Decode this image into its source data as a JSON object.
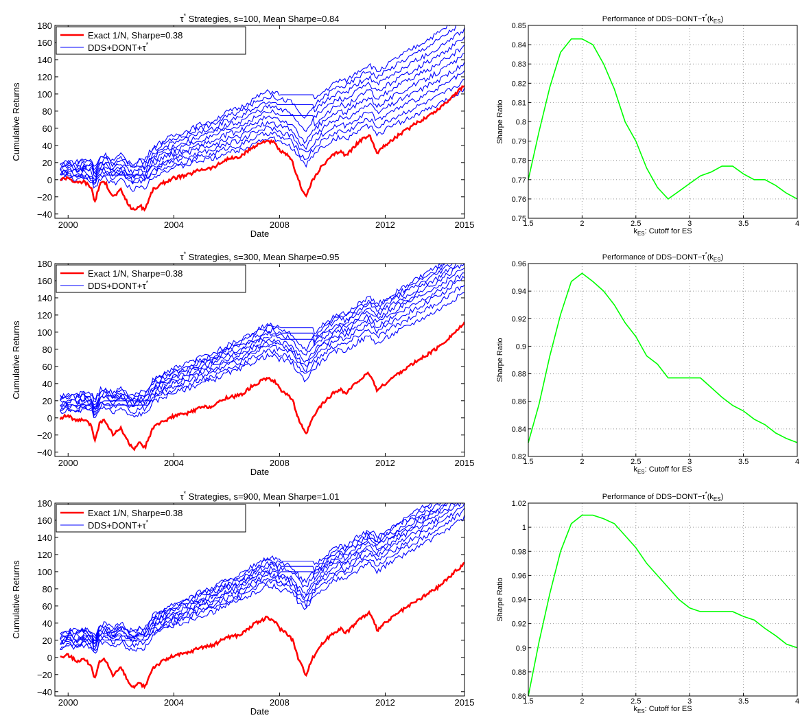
{
  "chart_data": [
    {
      "type": "line",
      "panel": "left-top",
      "title": "τ* Strategies, s=100, Mean Sharpe=0.84",
      "title_main": "τ",
      "title_sup": "*",
      "title_rest": " Strategies, s=100, Mean Sharpe=0.84",
      "xlabel": "Date",
      "ylabel": "Cumulative Returns",
      "xlim": [
        1999.5,
        2015
      ],
      "ylim": [
        -45,
        180
      ],
      "xticks": [
        "2000",
        "2004",
        "2008",
        "2012",
        "2015"
      ],
      "xtick_values": [
        2000,
        2004,
        2008,
        2012,
        2015
      ],
      "yticks": [
        "180",
        "160",
        "140",
        "120",
        "100",
        "80",
        "60",
        "40",
        "20",
        "0",
        "−20",
        "−40"
      ],
      "ytick_values": [
        180,
        160,
        140,
        120,
        100,
        80,
        60,
        40,
        20,
        0,
        -20,
        -40
      ],
      "grid": false,
      "legend_position": "top-left",
      "legend": {
        "exact": "Exact 1/N, Sharpe=0.38",
        "dds_main": "DDS+DONT+τ",
        "dds_sup": "*"
      },
      "colors": {
        "exact": "#ff0000",
        "dds": "#0000ff"
      },
      "exact_series": [
        [
          1999.7,
          0
        ],
        [
          2000.0,
          3
        ],
        [
          2000.3,
          -4
        ],
        [
          2000.6,
          -2
        ],
        [
          2000.9,
          -10
        ],
        [
          2001.0,
          -27
        ],
        [
          2001.2,
          -5
        ],
        [
          2001.4,
          -3
        ],
        [
          2001.7,
          -20
        ],
        [
          2002.0,
          -12
        ],
        [
          2002.3,
          -30
        ],
        [
          2002.5,
          -36
        ],
        [
          2002.7,
          -30
        ],
        [
          2002.9,
          -35
        ],
        [
          2003.2,
          -12
        ],
        [
          2003.6,
          -4
        ],
        [
          2004.0,
          2
        ],
        [
          2004.5,
          5
        ],
        [
          2005.0,
          12
        ],
        [
          2005.5,
          14
        ],
        [
          2006.0,
          24
        ],
        [
          2006.5,
          26
        ],
        [
          2007.0,
          38
        ],
        [
          2007.5,
          46
        ],
        [
          2007.8,
          43
        ],
        [
          2008.0,
          34
        ],
        [
          2008.3,
          28
        ],
        [
          2008.5,
          20
        ],
        [
          2008.7,
          0
        ],
        [
          2008.9,
          -14
        ],
        [
          2009.0,
          -20
        ],
        [
          2009.2,
          -4
        ],
        [
          2009.5,
          12
        ],
        [
          2010.0,
          28
        ],
        [
          2010.3,
          34
        ],
        [
          2010.5,
          28
        ],
        [
          2011.0,
          44
        ],
        [
          2011.4,
          52
        ],
        [
          2011.7,
          32
        ],
        [
          2012.0,
          40
        ],
        [
          2012.5,
          52
        ],
        [
          2013.0,
          62
        ],
        [
          2013.5,
          72
        ],
        [
          2014.0,
          82
        ],
        [
          2014.5,
          96
        ],
        [
          2015.0,
          110
        ]
      ],
      "dds_offsets": [
        [
          0,
          0
        ],
        [
          2,
          8
        ],
        [
          4,
          16
        ],
        [
          6,
          24
        ],
        [
          8,
          32
        ],
        [
          10,
          40
        ],
        [
          12,
          48
        ],
        [
          14,
          56
        ],
        [
          16,
          64
        ],
        [
          18,
          70
        ]
      ],
      "dds_flat": [
        [
          1,
          2001.3,
          2003.0
        ],
        [
          3,
          2003.0,
          2003.0
        ],
        [
          5,
          2008.0,
          2009.3
        ],
        [
          7,
          2008.0,
          2009.3
        ],
        [
          9,
          2008.0,
          2009.3
        ]
      ]
    },
    {
      "type": "line",
      "panel": "right-top",
      "title": "Performance of DDS−DONT−τ*(kES)",
      "title_main": "Performance of DDS−DONT−τ",
      "title_sup": "*",
      "title_paren_open": "(k",
      "title_sub": "ES",
      "title_paren_close": ")",
      "xlabel": "kES: Cutoff for ES",
      "xlabel_k": "k",
      "xlabel_sub": "ES",
      "xlabel_rest": ": Cutoff for ES",
      "ylabel": "Sharpe Ratio",
      "xlim": [
        1.5,
        4
      ],
      "ylim": [
        0.75,
        0.85
      ],
      "xticks": [
        "1.5",
        "2",
        "2.5",
        "3",
        "3.5",
        "4"
      ],
      "xtick_values": [
        1.5,
        2,
        2.5,
        3,
        3.5,
        4
      ],
      "yticks": [
        "0.85",
        "0.84",
        "0.83",
        "0.82",
        "0.81",
        "0.8",
        "0.79",
        "0.78",
        "0.77",
        "0.76",
        "0.75"
      ],
      "ytick_values": [
        0.85,
        0.84,
        0.83,
        0.82,
        0.81,
        0.8,
        0.79,
        0.78,
        0.77,
        0.76,
        0.75
      ],
      "grid": true,
      "color": "#00ff00",
      "x": [
        1.5,
        1.6,
        1.7,
        1.8,
        1.9,
        2.0,
        2.1,
        2.2,
        2.3,
        2.4,
        2.5,
        2.6,
        2.7,
        2.8,
        2.9,
        3.0,
        3.1,
        3.2,
        3.3,
        3.4,
        3.5,
        3.6,
        3.7,
        3.8,
        3.9,
        4.0
      ],
      "y": [
        0.77,
        0.795,
        0.818,
        0.836,
        0.843,
        0.843,
        0.84,
        0.83,
        0.817,
        0.8,
        0.79,
        0.776,
        0.766,
        0.76,
        0.764,
        0.768,
        0.772,
        0.774,
        0.777,
        0.777,
        0.773,
        0.77,
        0.77,
        0.767,
        0.763,
        0.76
      ]
    },
    {
      "type": "line",
      "panel": "left-middle",
      "title": "τ* Strategies, s=300, Mean Sharpe=0.95",
      "title_main": "τ",
      "title_sup": "*",
      "title_rest": " Strategies, s=300, Mean Sharpe=0.95",
      "xlabel": "Date",
      "ylabel": "Cumulative Returns",
      "xlim": [
        1999.5,
        2015
      ],
      "ylim": [
        -45,
        180
      ],
      "xticks": [
        "2000",
        "2004",
        "2008",
        "2012",
        "2015"
      ],
      "xtick_values": [
        2000,
        2004,
        2008,
        2012,
        2015
      ],
      "yticks": [
        "180",
        "160",
        "140",
        "120",
        "100",
        "80",
        "60",
        "40",
        "20",
        "0",
        "−20",
        "−40"
      ],
      "ytick_values": [
        180,
        160,
        140,
        120,
        100,
        80,
        60,
        40,
        20,
        0,
        -20,
        -40
      ],
      "grid": false,
      "legend_position": "top-left",
      "legend": {
        "exact": "Exact 1/N, Sharpe=0.38",
        "dds_main": "DDS+DONT+τ",
        "dds_sup": "*"
      },
      "colors": {
        "exact": "#ff0000",
        "dds": "#0000ff"
      },
      "exact_series": [
        [
          1999.7,
          0
        ],
        [
          2000.0,
          3
        ],
        [
          2000.3,
          -4
        ],
        [
          2000.6,
          -2
        ],
        [
          2000.9,
          -10
        ],
        [
          2001.0,
          -27
        ],
        [
          2001.2,
          -5
        ],
        [
          2001.4,
          -3
        ],
        [
          2001.7,
          -20
        ],
        [
          2002.0,
          -12
        ],
        [
          2002.3,
          -30
        ],
        [
          2002.5,
          -36
        ],
        [
          2002.7,
          -30
        ],
        [
          2002.9,
          -35
        ],
        [
          2003.2,
          -12
        ],
        [
          2003.6,
          -4
        ],
        [
          2004.0,
          2
        ],
        [
          2004.5,
          5
        ],
        [
          2005.0,
          12
        ],
        [
          2005.5,
          14
        ],
        [
          2006.0,
          24
        ],
        [
          2006.5,
          26
        ],
        [
          2007.0,
          38
        ],
        [
          2007.5,
          46
        ],
        [
          2007.8,
          43
        ],
        [
          2008.0,
          34
        ],
        [
          2008.3,
          28
        ],
        [
          2008.5,
          20
        ],
        [
          2008.7,
          0
        ],
        [
          2008.9,
          -14
        ],
        [
          2009.0,
          -20
        ],
        [
          2009.2,
          -4
        ],
        [
          2009.5,
          12
        ],
        [
          2010.0,
          28
        ],
        [
          2010.3,
          34
        ],
        [
          2010.5,
          28
        ],
        [
          2011.0,
          44
        ],
        [
          2011.4,
          52
        ],
        [
          2011.7,
          32
        ],
        [
          2012.0,
          40
        ],
        [
          2012.5,
          52
        ],
        [
          2013.0,
          62
        ],
        [
          2013.5,
          72
        ],
        [
          2014.0,
          82
        ],
        [
          2014.5,
          96
        ],
        [
          2015.0,
          110
        ]
      ],
      "dds_offsets": [
        [
          6,
          35
        ],
        [
          8,
          42
        ],
        [
          10,
          48
        ],
        [
          12,
          52
        ],
        [
          14,
          56
        ],
        [
          16,
          60
        ],
        [
          18,
          63
        ],
        [
          20,
          66
        ],
        [
          22,
          68
        ],
        [
          24,
          70
        ]
      ],
      "dds_flat": [
        [
          1,
          2001.3,
          2003.0
        ],
        [
          3,
          2001.3,
          2003.0
        ],
        [
          5,
          2008.0,
          2009.3
        ],
        [
          7,
          2008.0,
          2009.3
        ],
        [
          9,
          2008.0,
          2009.3
        ]
      ]
    },
    {
      "type": "line",
      "panel": "right-middle",
      "title": "Performance of DDS−DONT−τ*(kES)",
      "title_main": "Performance of DDS−DONT−τ",
      "title_sup": "*",
      "title_paren_open": "(k",
      "title_sub": "ES",
      "title_paren_close": ")",
      "xlabel": "kES: Cutoff for ES",
      "xlabel_k": "k",
      "xlabel_sub": "ES",
      "xlabel_rest": ": Cutoff for ES",
      "ylabel": "Sharpe Ratio",
      "xlim": [
        1.5,
        4
      ],
      "ylim": [
        0.82,
        0.96
      ],
      "xticks": [
        "1.5",
        "2",
        "2.5",
        "3",
        "3.5",
        "4"
      ],
      "xtick_values": [
        1.5,
        2,
        2.5,
        3,
        3.5,
        4
      ],
      "yticks": [
        "0.96",
        "0.94",
        "0.92",
        "0.9",
        "0.88",
        "0.86",
        "0.84",
        "0.82"
      ],
      "ytick_values": [
        0.96,
        0.94,
        0.92,
        0.9,
        0.88,
        0.86,
        0.84,
        0.82
      ],
      "grid": true,
      "color": "#00ff00",
      "x": [
        1.5,
        1.6,
        1.7,
        1.8,
        1.9,
        2.0,
        2.1,
        2.2,
        2.3,
        2.4,
        2.5,
        2.6,
        2.7,
        2.8,
        2.9,
        3.0,
        3.1,
        3.2,
        3.3,
        3.4,
        3.5,
        3.6,
        3.7,
        3.8,
        3.9,
        4.0
      ],
      "y": [
        0.83,
        0.858,
        0.893,
        0.923,
        0.947,
        0.953,
        0.947,
        0.94,
        0.93,
        0.917,
        0.907,
        0.893,
        0.887,
        0.877,
        0.877,
        0.877,
        0.877,
        0.87,
        0.863,
        0.857,
        0.853,
        0.847,
        0.843,
        0.837,
        0.833,
        0.83
      ]
    },
    {
      "type": "line",
      "panel": "left-bottom",
      "title": "τ* Strategies, s=900, Mean Sharpe=1.01",
      "title_main": "τ",
      "title_sup": "*",
      "title_rest": " Strategies, s=900, Mean Sharpe=1.01",
      "xlabel": "Date",
      "ylabel": "Cumulative Returns",
      "xlim": [
        1999.5,
        2015
      ],
      "ylim": [
        -45,
        180
      ],
      "xticks": [
        "2000",
        "2004",
        "2008",
        "2012",
        "2015"
      ],
      "xtick_values": [
        2000,
        2004,
        2008,
        2012,
        2015
      ],
      "yticks": [
        "180",
        "160",
        "140",
        "120",
        "100",
        "80",
        "60",
        "40",
        "20",
        "0",
        "−20",
        "−40"
      ],
      "ytick_values": [
        180,
        160,
        140,
        120,
        100,
        80,
        60,
        40,
        20,
        0,
        -20,
        -40
      ],
      "grid": false,
      "legend_position": "top-left",
      "legend": {
        "exact": "Exact 1/N, Sharpe=0.38",
        "dds_main": "DDS+DONT+τ",
        "dds_sup": "*"
      },
      "colors": {
        "exact": "#ff0000",
        "dds": "#0000ff"
      },
      "exact_series": [
        [
          1999.7,
          0
        ],
        [
          2000.0,
          3
        ],
        [
          2000.3,
          -4
        ],
        [
          2000.6,
          -2
        ],
        [
          2000.9,
          -10
        ],
        [
          2001.0,
          -27
        ],
        [
          2001.2,
          -5
        ],
        [
          2001.4,
          -3
        ],
        [
          2001.7,
          -20
        ],
        [
          2002.0,
          -12
        ],
        [
          2002.3,
          -30
        ],
        [
          2002.5,
          -36
        ],
        [
          2002.7,
          -30
        ],
        [
          2002.9,
          -35
        ],
        [
          2003.2,
          -12
        ],
        [
          2003.6,
          -4
        ],
        [
          2004.0,
          2
        ],
        [
          2004.5,
          5
        ],
        [
          2005.0,
          12
        ],
        [
          2005.5,
          14
        ],
        [
          2006.0,
          24
        ],
        [
          2006.5,
          26
        ],
        [
          2007.0,
          38
        ],
        [
          2007.5,
          46
        ],
        [
          2007.8,
          43
        ],
        [
          2008.0,
          34
        ],
        [
          2008.3,
          28
        ],
        [
          2008.5,
          20
        ],
        [
          2008.7,
          0
        ],
        [
          2008.9,
          -14
        ],
        [
          2009.0,
          -20
        ],
        [
          2009.2,
          -4
        ],
        [
          2009.5,
          12
        ],
        [
          2010.0,
          28
        ],
        [
          2010.3,
          34
        ],
        [
          2010.5,
          28
        ],
        [
          2011.0,
          44
        ],
        [
          2011.4,
          52
        ],
        [
          2011.7,
          32
        ],
        [
          2012.0,
          40
        ],
        [
          2012.5,
          52
        ],
        [
          2013.0,
          62
        ],
        [
          2013.5,
          72
        ],
        [
          2014.0,
          82
        ],
        [
          2014.5,
          96
        ],
        [
          2015.0,
          110
        ]
      ],
      "dds_offsets": [
        [
          10,
          48
        ],
        [
          12,
          54
        ],
        [
          14,
          58
        ],
        [
          16,
          62
        ],
        [
          18,
          65
        ],
        [
          20,
          68
        ],
        [
          22,
          70
        ],
        [
          24,
          72
        ],
        [
          26,
          74
        ],
        [
          28,
          76
        ]
      ],
      "dds_flat": [
        [
          1,
          2001.3,
          2003.0
        ],
        [
          3,
          2001.3,
          2003.0
        ],
        [
          5,
          2008.0,
          2009.3
        ],
        [
          7,
          2008.0,
          2009.3
        ],
        [
          9,
          2008.0,
          2009.3
        ]
      ]
    },
    {
      "type": "line",
      "panel": "right-bottom",
      "title": "Performance of DDS−DONT−τ*(kES)",
      "title_main": "Performance of DDS−DONT−τ",
      "title_sup": "*",
      "title_paren_open": "(k",
      "title_sub": "ES",
      "title_paren_close": ")",
      "xlabel": "kES: Cutoff for ES",
      "xlabel_k": "k",
      "xlabel_sub": "ES",
      "xlabel_rest": ": Cutoff for ES",
      "ylabel": "Sharpe Ratio",
      "xlim": [
        1.5,
        4
      ],
      "ylim": [
        0.86,
        1.02
      ],
      "xticks": [
        "1.5",
        "2",
        "2.5",
        "3",
        "3.5",
        "4"
      ],
      "xtick_values": [
        1.5,
        2,
        2.5,
        3,
        3.5,
        4
      ],
      "yticks": [
        "1.02",
        "1",
        "0.98",
        "0.96",
        "0.94",
        "0.92",
        "0.9",
        "0.88",
        "0.86"
      ],
      "ytick_values": [
        1.02,
        1.0,
        0.98,
        0.96,
        0.94,
        0.92,
        0.9,
        0.88,
        0.86
      ],
      "grid": true,
      "color": "#00ff00",
      "x": [
        1.5,
        1.6,
        1.7,
        1.8,
        1.9,
        2.0,
        2.1,
        2.2,
        2.3,
        2.4,
        2.5,
        2.6,
        2.7,
        2.8,
        2.9,
        3.0,
        3.1,
        3.2,
        3.3,
        3.4,
        3.5,
        3.6,
        3.7,
        3.8,
        3.9,
        4.0
      ],
      "y": [
        0.86,
        0.905,
        0.945,
        0.98,
        1.003,
        1.01,
        1.01,
        1.007,
        1.003,
        0.993,
        0.983,
        0.97,
        0.96,
        0.95,
        0.94,
        0.933,
        0.93,
        0.93,
        0.93,
        0.93,
        0.926,
        0.923,
        0.916,
        0.91,
        0.903,
        0.9
      ]
    }
  ]
}
